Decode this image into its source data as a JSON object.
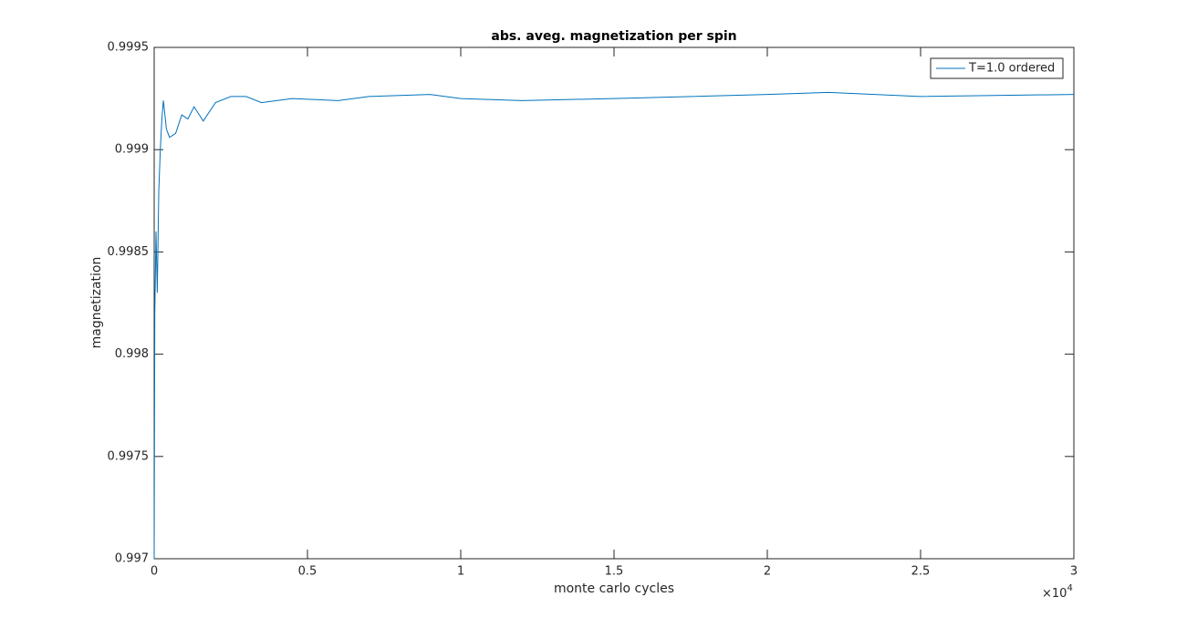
{
  "chart_data": {
    "type": "line",
    "title": "abs. aveg. magnetization per spin",
    "x_label": "monte carlo cycles",
    "y_label": "magnetization",
    "x_multiplier": {
      "base": "×10",
      "exponent": "4"
    },
    "xlim": [
      0,
      30000
    ],
    "xticks": [
      0,
      {
        "value": 5000,
        "label": "0.5"
      },
      {
        "value": 10000,
        "label": "1"
      },
      {
        "value": 15000,
        "label": "1.5"
      },
      {
        "value": 20000,
        "label": "2"
      },
      {
        "value": 25000,
        "label": "2.5"
      },
      {
        "value": 30000,
        "label": "3"
      }
    ],
    "ylim": [
      0.997,
      0.9995
    ],
    "yticks": [
      0.997,
      0.9975,
      0.998,
      0.9985,
      0.999,
      0.9995
    ],
    "grid": false,
    "legend": "top-right",
    "series": [
      {
        "name": "T=1.0 ordered",
        "color": "#0072bd",
        "x": [
          0,
          20,
          60,
          100,
          150,
          200,
          250,
          300,
          400,
          500,
          700,
          900,
          1100,
          1300,
          1600,
          2000,
          2500,
          3000,
          3500,
          4500,
          6000,
          7000,
          9000,
          10000,
          12000,
          15000,
          20000,
          22000,
          25000,
          30000
        ],
        "values": [
          0.997,
          0.9982,
          0.9986,
          0.9983,
          0.9988,
          0.999,
          0.99915,
          0.99924,
          0.9991,
          0.99906,
          0.99908,
          0.99917,
          0.99915,
          0.99921,
          0.99914,
          0.99923,
          0.99926,
          0.99926,
          0.99923,
          0.99925,
          0.99924,
          0.99926,
          0.99927,
          0.99925,
          0.99924,
          0.99925,
          0.99927,
          0.99928,
          0.99926,
          0.99927
        ]
      }
    ]
  }
}
